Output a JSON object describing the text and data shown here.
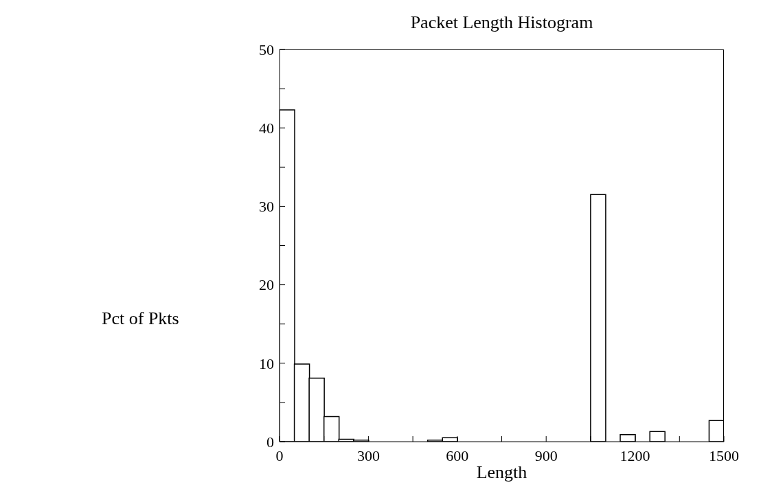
{
  "chart_data": {
    "type": "histogram",
    "title": "Packet Length Histogram",
    "xlabel": "Length",
    "ylabel": "Pct of Pkts",
    "bins": [
      0,
      50,
      100,
      150,
      200,
      250,
      300,
      350,
      400,
      450,
      500,
      550,
      600,
      650,
      700,
      750,
      800,
      850,
      900,
      950,
      1000,
      1050,
      1100,
      1150,
      1200,
      1250,
      1300,
      1350,
      1400,
      1450,
      1500
    ],
    "values": [
      42.3,
      9.9,
      8.1,
      3.2,
      0.3,
      0.2,
      0,
      0,
      0,
      0,
      0.2,
      0.5,
      0,
      0,
      0,
      0,
      0,
      0,
      0,
      0,
      0,
      31.5,
      0,
      0.9,
      0,
      1.3,
      0,
      0,
      0,
      2.7
    ],
    "color": "#ffffff",
    "xlim": [
      0,
      1500
    ],
    "xticks": [
      0,
      {
        "value": 150,
        "label": null
      },
      300,
      {
        "value": 450,
        "label": null
      },
      600,
      {
        "value": 750,
        "label": null
      },
      900,
      {
        "value": 1050,
        "label": null
      },
      1200,
      {
        "value": 1350,
        "label": null
      },
      1500
    ],
    "ylim": [
      0,
      50
    ],
    "yticks": [
      0,
      {
        "value": 5,
        "label": null
      },
      10,
      {
        "value": 15,
        "label": null
      },
      20,
      {
        "value": 25,
        "label": null
      },
      30,
      {
        "value": 35,
        "label": null
      },
      40,
      {
        "value": 45,
        "label": null
      },
      50
    ],
    "grid": false
  }
}
